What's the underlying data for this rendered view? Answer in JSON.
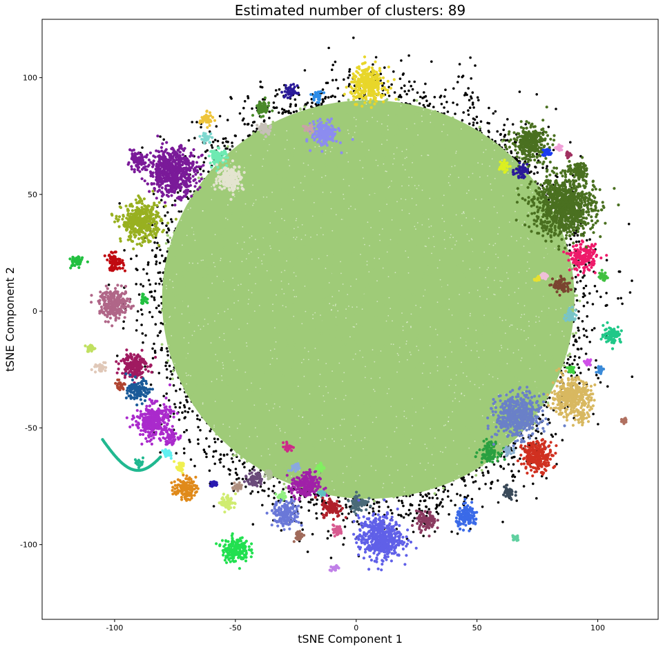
{
  "chart_data": {
    "type": "scatter",
    "title": "Estimated number of clusters: 89",
    "xlabel": "tSNE Component 1",
    "ylabel": "tSNE Component 2",
    "xlim": [
      -130,
      125
    ],
    "ylim": [
      -132,
      125
    ],
    "xticks": [
      -100,
      -50,
      0,
      50,
      100
    ],
    "yticks": [
      100,
      50,
      0,
      -50,
      -100
    ],
    "grid": false,
    "main_cluster": {
      "name": "main",
      "color": "#9fcb78",
      "center": [
        5,
        5
      ],
      "radius": 88
    },
    "noise": {
      "name": "noise",
      "color": "#000000"
    },
    "clusters": [
      {
        "name": "yellow-top",
        "color": "#e8d62a",
        "center": [
          5,
          97
        ],
        "radius": 8
      },
      {
        "name": "navy-top",
        "color": "#2a1a99",
        "center": [
          -27,
          94
        ],
        "radius": 3
      },
      {
        "name": "blue-top",
        "color": "#2e8de8",
        "center": [
          -16,
          92
        ],
        "radius": 2.5
      },
      {
        "name": "green-top",
        "color": "#4a8a2a",
        "center": [
          -39,
          87
        ],
        "radius": 3.5
      },
      {
        "name": "periwinkle-top",
        "color": "#8c8cf0",
        "center": [
          -13,
          76
        ],
        "radius": 6
      },
      {
        "name": "gold-small",
        "color": "#eec43a",
        "center": [
          -62,
          82
        ],
        "radius": 3
      },
      {
        "name": "grey-top",
        "color": "#c6c0b8",
        "center": [
          -38,
          78
        ],
        "radius": 3
      },
      {
        "name": "pink-grey-top",
        "color": "#c8a2a8",
        "center": [
          -20,
          78
        ],
        "radius": 2
      },
      {
        "name": "purple-large",
        "color": "#7a1a99",
        "center": [
          -76,
          60
        ],
        "radius": 11
      },
      {
        "name": "purple-tail",
        "color": "#7a1a99",
        "center": [
          -91,
          64
        ],
        "radius": 4
      },
      {
        "name": "mint-top",
        "color": "#6eeab2",
        "center": [
          -57,
          66
        ],
        "radius": 4
      },
      {
        "name": "aqua-top",
        "color": "#7ed8d0",
        "center": [
          -62,
          74
        ],
        "radius": 2.5
      },
      {
        "name": "cream",
        "color": "#e4e4d0",
        "center": [
          -52,
          57
        ],
        "radius": 6
      },
      {
        "name": "olive",
        "color": "#98b020",
        "center": [
          -89,
          38
        ],
        "radius": 9
      },
      {
        "name": "green-far-left",
        "color": "#22c040",
        "center": [
          -116,
          21
        ],
        "radius": 3
      },
      {
        "name": "red-left",
        "color": "#c00a10",
        "center": [
          -100,
          21
        ],
        "radius": 4
      },
      {
        "name": "mauve-left",
        "color": "#b06688",
        "center": [
          -100,
          3
        ],
        "radius": 7
      },
      {
        "name": "green-left-small",
        "color": "#22c040",
        "center": [
          -88,
          5
        ],
        "radius": 2
      },
      {
        "name": "lime-left",
        "color": "#c0e060",
        "center": [
          -110,
          -16
        ],
        "radius": 2
      },
      {
        "name": "beige-left",
        "color": "#e0c8b8",
        "center": [
          -106,
          -24
        ],
        "radius": 2.5
      },
      {
        "name": "wine",
        "color": "#a01a60",
        "center": [
          -92,
          -23
        ],
        "radius": 6
      },
      {
        "name": "rust-left",
        "color": "#b04430",
        "center": [
          -98,
          -32
        ],
        "radius": 2.5
      },
      {
        "name": "deep-blue",
        "color": "#1a5a99",
        "center": [
          -90,
          -34
        ],
        "radius": 5
      },
      {
        "name": "magenta-purple",
        "color": "#aa2acc",
        "center": [
          -84,
          -47
        ],
        "radius": 8
      },
      {
        "name": "magenta-tail",
        "color": "#aa2acc",
        "center": [
          -77,
          -54
        ],
        "radius": 3.5
      },
      {
        "name": "cyan-bottom-left",
        "color": "#60f0f0",
        "center": [
          -78,
          -61
        ],
        "radius": 2
      },
      {
        "name": "yellow-bottom-left",
        "color": "#f0f050",
        "center": [
          -73,
          -67
        ],
        "radius": 2.5
      },
      {
        "name": "orange",
        "color": "#e08a1a",
        "center": [
          -71,
          -76
        ],
        "radius": 5
      },
      {
        "name": "navy-small",
        "color": "#2a1ab0",
        "center": [
          -59,
          -74
        ],
        "radius": 1.5
      },
      {
        "name": "lime-yellow",
        "color": "#d0ec70",
        "center": [
          -53,
          -82
        ],
        "radius": 3.5
      },
      {
        "name": "tan-small",
        "color": "#b09080",
        "center": [
          -49,
          -75
        ],
        "radius": 2
      },
      {
        "name": "slate-purple",
        "color": "#6a4a7a",
        "center": [
          -42,
          -72
        ],
        "radius": 3.5
      },
      {
        "name": "light-green-small",
        "color": "#90f080",
        "center": [
          -31,
          -79
        ],
        "radius": 2
      },
      {
        "name": "steel-blue",
        "color": "#6a78d8",
        "center": [
          -29,
          -87
        ],
        "radius": 6
      },
      {
        "name": "tan-grey",
        "color": "#b0c098",
        "center": [
          -36,
          -70
        ],
        "radius": 2
      },
      {
        "name": "violet",
        "color": "#a020a8",
        "center": [
          -21,
          -75
        ],
        "radius": 6.5
      },
      {
        "name": "pink-magenta",
        "color": "#cc2a88",
        "center": [
          -28,
          -58
        ],
        "radius": 2
      },
      {
        "name": "lavender-small",
        "color": "#8aa8e0",
        "center": [
          -25,
          -67
        ],
        "radius": 2
      },
      {
        "name": "green-small-bottom",
        "color": "#80f060",
        "center": [
          -15,
          -67
        ],
        "radius": 2
      },
      {
        "name": "teal-small",
        "color": "#60c0c0",
        "center": [
          -14,
          -78
        ],
        "radius": 1.5
      },
      {
        "name": "crimson",
        "color": "#b0202a",
        "center": [
          -10,
          -84
        ],
        "radius": 4.5
      },
      {
        "name": "dark-slate",
        "color": "#4a6a78",
        "center": [
          1,
          -82
        ],
        "radius": 4
      },
      {
        "name": "rose",
        "color": "#d85a90",
        "center": [
          -8,
          -94
        ],
        "radius": 2.5
      },
      {
        "name": "brown-small",
        "color": "#a06a5a",
        "center": [
          -24,
          -96
        ],
        "radius": 2.5
      },
      {
        "name": "lilac-small",
        "color": "#c080e8",
        "center": [
          -9,
          -110
        ],
        "radius": 1.5
      },
      {
        "name": "royal-blue-bottom",
        "color": "#6060e8",
        "center": [
          10,
          -97
        ],
        "radius": 10
      },
      {
        "name": "bright-green-bottom",
        "color": "#22e050",
        "center": [
          -50,
          -102
        ],
        "radius": 6
      },
      {
        "name": "plum",
        "color": "#8a3a60",
        "center": [
          29,
          -90
        ],
        "radius": 4.5
      },
      {
        "name": "azure",
        "color": "#3a6ae8",
        "center": [
          46,
          -88
        ],
        "radius": 5
      },
      {
        "name": "slate-dark",
        "color": "#3a4a5a",
        "center": [
          63,
          -78
        ],
        "radius": 3
      },
      {
        "name": "mint-small-bottom",
        "color": "#60d0a0",
        "center": [
          66,
          -97
        ],
        "radius": 1.5
      },
      {
        "name": "emerald",
        "color": "#2aa040",
        "center": [
          55,
          -60
        ],
        "radius": 4.5
      },
      {
        "name": "cornflower",
        "color": "#6a80c8",
        "center": [
          67,
          -45
        ],
        "radius": 10
      },
      {
        "name": "light-blue-small",
        "color": "#8ab0d0",
        "center": [
          63,
          -60
        ],
        "radius": 2
      },
      {
        "name": "scarlet",
        "color": "#d03020",
        "center": [
          75,
          -62
        ],
        "radius": 7
      },
      {
        "name": "sand",
        "color": "#d8b860",
        "center": [
          89,
          -37
        ],
        "radius": 9
      },
      {
        "name": "sand-tail",
        "color": "#d8b860",
        "center": [
          94,
          -45
        ],
        "radius": 2.5
      },
      {
        "name": "magenta-small",
        "color": "#d050e8",
        "center": [
          96,
          -22
        ],
        "radius": 1.5
      },
      {
        "name": "blue-small-right",
        "color": "#3a8ad8",
        "center": [
          101,
          -25
        ],
        "radius": 1.5
      },
      {
        "name": "green-small-right",
        "color": "#40d040",
        "center": [
          89,
          -25
        ],
        "radius": 2
      },
      {
        "name": "rose-brown-right",
        "color": "#b07060",
        "center": [
          111,
          -47
        ],
        "radius": 1.5
      },
      {
        "name": "jade",
        "color": "#20c888",
        "center": [
          106,
          -10
        ],
        "radius": 4
      },
      {
        "name": "light-teal",
        "color": "#78c4c8",
        "center": [
          89,
          -2
        ],
        "radius": 3
      },
      {
        "name": "dark-brown",
        "color": "#7a4430",
        "center": [
          85,
          11
        ],
        "radius": 4
      },
      {
        "name": "hot-pink",
        "color": "#ee1a6a",
        "center": [
          94,
          23
        ],
        "radius": 6
      },
      {
        "name": "green-small-right-top",
        "color": "#40c040",
        "center": [
          102,
          15
        ],
        "radius": 2
      },
      {
        "name": "forest-green",
        "color": "#4a7020",
        "center": [
          86,
          45
        ],
        "radius": 14
      },
      {
        "name": "forest-green-top",
        "color": "#4a7020",
        "center": [
          72,
          72
        ],
        "radius": 8
      },
      {
        "name": "forest-green-tail",
        "color": "#4a7020",
        "center": [
          92,
          60
        ],
        "radius": 4
      },
      {
        "name": "lime-right",
        "color": "#dcf020",
        "center": [
          61,
          62
        ],
        "radius": 2.5
      },
      {
        "name": "indigo-right",
        "color": "#2a1a99",
        "center": [
          68,
          60
        ],
        "radius": 3
      },
      {
        "name": "blue-right-small",
        "color": "#1a3af0",
        "center": [
          79,
          68
        ],
        "radius": 2
      },
      {
        "name": "pink-right-small",
        "color": "#f0a0d8",
        "center": [
          84,
          70
        ],
        "radius": 1.5
      },
      {
        "name": "burgundy-small",
        "color": "#a03060",
        "center": [
          88,
          67
        ],
        "radius": 1.2
      },
      {
        "name": "teal-green-arc",
        "color": "#20b890",
        "center": [
          -90,
          -65
        ],
        "radius": 2
      },
      {
        "name": "yellow-small-right",
        "color": "#e8e030",
        "center": [
          75,
          14
        ],
        "radius": 1.2
      },
      {
        "name": "pink-small-right",
        "color": "#f0c0d8",
        "center": [
          78,
          15
        ],
        "radius": 1.5
      }
    ]
  }
}
